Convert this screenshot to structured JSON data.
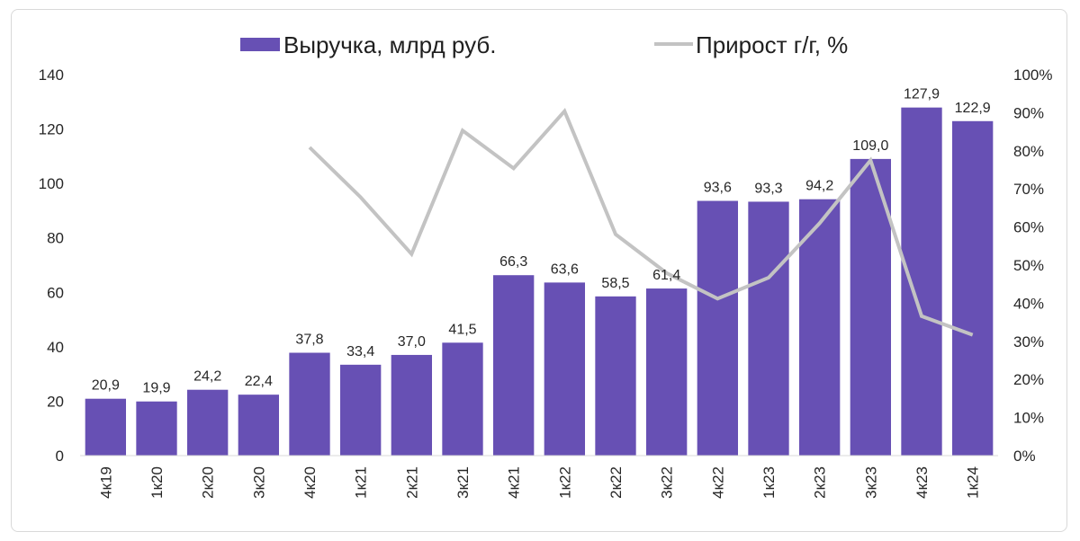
{
  "chart_data": {
    "type": "bar",
    "categories": [
      "4к19",
      "1к20",
      "2к20",
      "3к20",
      "4к20",
      "1к21",
      "2к21",
      "3к21",
      "4к21",
      "1к22",
      "2к22",
      "3к22",
      "4к22",
      "1к23",
      "2к23",
      "3к23",
      "4к23",
      "1к24"
    ],
    "series": [
      {
        "name": "Выручка, млрд руб.",
        "type": "bar",
        "axis": "left",
        "color": "#6750b4",
        "values": [
          20.9,
          19.9,
          24.2,
          22.4,
          37.8,
          33.4,
          37.0,
          41.5,
          66.3,
          63.6,
          58.5,
          61.4,
          93.6,
          93.3,
          94.2,
          109.0,
          127.9,
          122.9
        ],
        "labels": [
          "20,9",
          "19,9",
          "24,2",
          "22,4",
          "37,8",
          "33,4",
          "37,0",
          "41,5",
          "66,3",
          "63,6",
          "58,5",
          "61,4",
          "93,6",
          "93,3",
          "94,2",
          "109,0",
          "127,9",
          "122,9"
        ]
      },
      {
        "name": "Прирост г/г, %",
        "type": "line",
        "axis": "right",
        "color": "#c3c3c3",
        "values": [
          null,
          null,
          null,
          null,
          80.9,
          67.8,
          52.9,
          85.3,
          75.4,
          90.4,
          58.1,
          47.9,
          41.2,
          46.7,
          61.0,
          77.5,
          36.6,
          31.7
        ]
      }
    ],
    "y_left": {
      "ylim": [
        0,
        140
      ],
      "ticks": [
        "0",
        "20",
        "40",
        "60",
        "80",
        "100",
        "120",
        "140"
      ]
    },
    "y_right": {
      "ylim": [
        0,
        100
      ],
      "ticks": [
        "0%",
        "10%",
        "20%",
        "30%",
        "40%",
        "50%",
        "60%",
        "70%",
        "80%",
        "90%",
        "100%"
      ]
    },
    "legend": {
      "placement": "top"
    },
    "grid": false
  }
}
